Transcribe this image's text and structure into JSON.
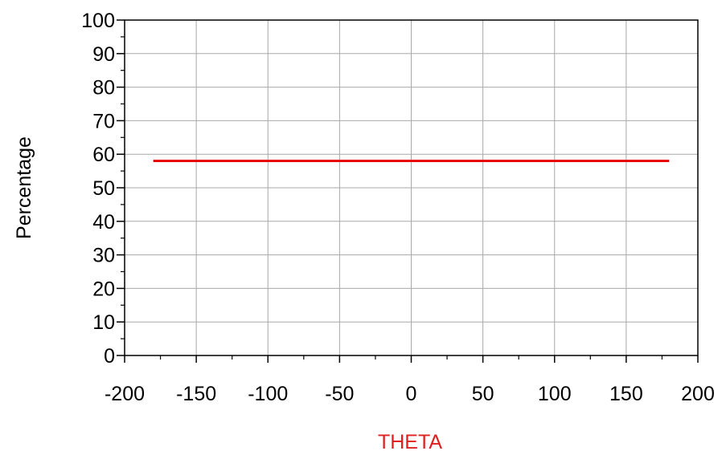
{
  "chart_data": {
    "type": "line",
    "xlabel": "THETA",
    "ylabel": "Percentage",
    "xlim": [
      -200,
      200
    ],
    "ylim": [
      0,
      100
    ],
    "xticks": [
      -200,
      -150,
      -100,
      -50,
      0,
      50,
      100,
      150,
      200
    ],
    "yticks": [
      0,
      10,
      20,
      30,
      40,
      50,
      60,
      70,
      80,
      90,
      100
    ],
    "xtick_labels": [
      "-200",
      "-150",
      "-100",
      "-50",
      "0",
      "50",
      "100",
      "150",
      "200"
    ],
    "ytick_labels": [
      "0",
      "10",
      "20",
      "30",
      "40",
      "50",
      "60",
      "70",
      "80",
      "90",
      "100"
    ],
    "grid": true,
    "series": [
      {
        "color": "#e60000",
        "x": [
          -180,
          180
        ],
        "y": [
          58,
          58
        ]
      }
    ]
  },
  "colors": {
    "xlabel": "#e02020",
    "ylabel": "#000000",
    "grid": "#a8a8a8",
    "axes": "#000000"
  }
}
